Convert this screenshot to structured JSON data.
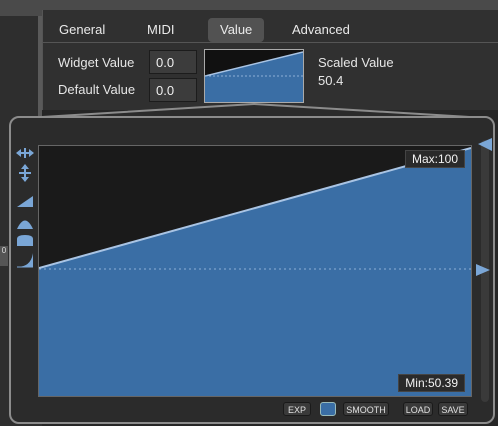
{
  "tabs": [
    {
      "label": "General"
    },
    {
      "label": "MIDI"
    },
    {
      "label": "Value"
    },
    {
      "label": "Advanced"
    }
  ],
  "value": {
    "widget_label": "Widget Value",
    "widget_value": "0.0",
    "default_label": "Default Value",
    "default_value": "0.0",
    "scaled_label": "Scaled Value",
    "scaled_value": "50.4"
  },
  "curve": {
    "max_label": "Max:100",
    "min_label": "Min:50.39"
  },
  "buttons": {
    "exp": "EXP",
    "smooth": "SMOOTH",
    "load": "LOAD",
    "save": "SAVE"
  },
  "side_tag": "0",
  "colors": {
    "curve_fill": "#3a6ea5",
    "curve_line": "#a9c4e4",
    "accent_tab": "#525252"
  },
  "icons": {
    "tools": [
      "resize-horizontal-icon",
      "resize-vertical-icon",
      "ramp-icon",
      "hump-icon",
      "round-icon",
      "curve-icon"
    ]
  }
}
